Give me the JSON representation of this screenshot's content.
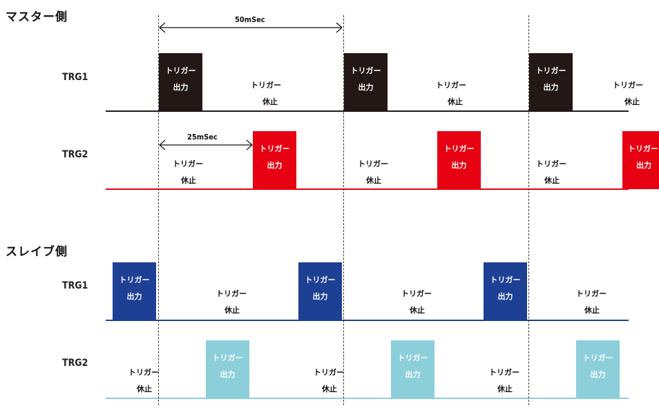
{
  "colors": {
    "master_trg1": "#231815",
    "master_trg2": "#e60012",
    "slave_trg1": "#1d3f94",
    "slave_trg2": "#8ccfda",
    "pulse_text_dark": "#ffffff",
    "pulse_text_light": "#ffffff"
  },
  "master": {
    "title": "マスター側",
    "trg1_label": "TRG1",
    "trg2_label": "TRG2"
  },
  "slave": {
    "title": "スレイブ側",
    "trg1_label": "TRG1",
    "trg2_label": "TRG2"
  },
  "measurements": {
    "period": "50mSec",
    "offset": "25mSec"
  },
  "pulse_text": {
    "line1": "トリガー",
    "line2": "出力"
  },
  "rest_text": {
    "line1": "トリガー",
    "line2": "休止"
  }
}
